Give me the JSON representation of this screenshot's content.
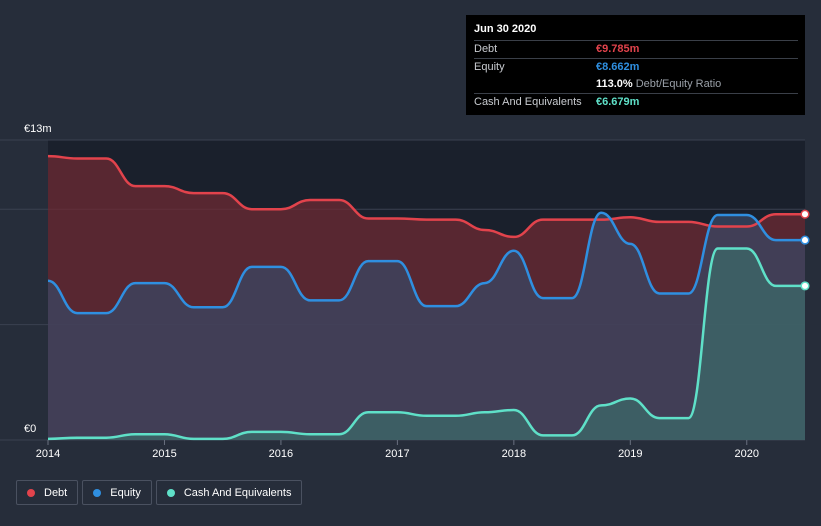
{
  "chart_data": {
    "type": "area",
    "title": "",
    "y_axis": {
      "min": 0,
      "max": 13,
      "unit": "€m",
      "top_label": "€13m",
      "bottom_label": "€0"
    },
    "x_axis": {
      "min": 2014.0,
      "max": 2020.5,
      "ticks": [
        {
          "value": 2014,
          "label": "2014"
        },
        {
          "value": 2015,
          "label": "2015"
        },
        {
          "value": 2016,
          "label": "2016"
        },
        {
          "value": 2017,
          "label": "2017"
        },
        {
          "value": 2018,
          "label": "2018"
        },
        {
          "value": 2019,
          "label": "2019"
        },
        {
          "value": 2020,
          "label": "2020"
        }
      ]
    },
    "series": [
      {
        "key": "debt",
        "name": "Debt",
        "color": "#e2434c",
        "fill": "#6e2a33",
        "points": [
          [
            2014.0,
            12.3
          ],
          [
            2014.25,
            12.2
          ],
          [
            2014.5,
            12.2
          ],
          [
            2014.75,
            11.0
          ],
          [
            2015.0,
            11.0
          ],
          [
            2015.25,
            10.7
          ],
          [
            2015.5,
            10.7
          ],
          [
            2015.75,
            10.0
          ],
          [
            2016.0,
            10.0
          ],
          [
            2016.25,
            10.4
          ],
          [
            2016.5,
            10.4
          ],
          [
            2016.75,
            9.6
          ],
          [
            2017.0,
            9.6
          ],
          [
            2017.25,
            9.55
          ],
          [
            2017.5,
            9.55
          ],
          [
            2017.75,
            9.1
          ],
          [
            2018.0,
            8.8
          ],
          [
            2018.25,
            9.55
          ],
          [
            2018.5,
            9.55
          ],
          [
            2018.75,
            9.55
          ],
          [
            2019.0,
            9.65
          ],
          [
            2019.25,
            9.45
          ],
          [
            2019.5,
            9.45
          ],
          [
            2019.75,
            9.25
          ],
          [
            2020.0,
            9.25
          ],
          [
            2020.25,
            9.785
          ],
          [
            2020.5,
            9.785
          ]
        ]
      },
      {
        "key": "equity",
        "name": "Equity",
        "color": "#2f8fe0",
        "fill": "#3a4763",
        "points": [
          [
            2014.0,
            6.9
          ],
          [
            2014.25,
            5.5
          ],
          [
            2014.5,
            5.5
          ],
          [
            2014.75,
            6.8
          ],
          [
            2015.0,
            6.8
          ],
          [
            2015.25,
            5.75
          ],
          [
            2015.5,
            5.75
          ],
          [
            2015.75,
            7.5
          ],
          [
            2016.0,
            7.5
          ],
          [
            2016.25,
            6.05
          ],
          [
            2016.5,
            6.05
          ],
          [
            2016.75,
            7.75
          ],
          [
            2017.0,
            7.75
          ],
          [
            2017.25,
            5.8
          ],
          [
            2017.5,
            5.8
          ],
          [
            2017.75,
            6.8
          ],
          [
            2018.0,
            8.2
          ],
          [
            2018.25,
            6.15
          ],
          [
            2018.5,
            6.15
          ],
          [
            2018.75,
            9.85
          ],
          [
            2019.0,
            8.5
          ],
          [
            2019.25,
            6.35
          ],
          [
            2019.5,
            6.35
          ],
          [
            2019.75,
            9.75
          ],
          [
            2020.0,
            9.75
          ],
          [
            2020.25,
            8.662
          ],
          [
            2020.5,
            8.662
          ]
        ]
      },
      {
        "key": "cash",
        "name": "Cash And Equivalents",
        "color": "#5fe0c8",
        "fill": "#3c6a6a",
        "points": [
          [
            2014.0,
            0.05
          ],
          [
            2014.25,
            0.1
          ],
          [
            2014.5,
            0.1
          ],
          [
            2014.75,
            0.25
          ],
          [
            2015.0,
            0.25
          ],
          [
            2015.25,
            0.05
          ],
          [
            2015.5,
            0.05
          ],
          [
            2015.75,
            0.35
          ],
          [
            2016.0,
            0.35
          ],
          [
            2016.25,
            0.25
          ],
          [
            2016.5,
            0.25
          ],
          [
            2016.75,
            1.2
          ],
          [
            2017.0,
            1.2
          ],
          [
            2017.25,
            1.05
          ],
          [
            2017.5,
            1.05
          ],
          [
            2017.75,
            1.2
          ],
          [
            2018.0,
            1.3
          ],
          [
            2018.25,
            0.2
          ],
          [
            2018.5,
            0.2
          ],
          [
            2018.75,
            1.5
          ],
          [
            2019.0,
            1.8
          ],
          [
            2019.25,
            0.95
          ],
          [
            2019.5,
            0.95
          ],
          [
            2019.75,
            8.3
          ],
          [
            2020.0,
            8.3
          ],
          [
            2020.25,
            6.679
          ],
          [
            2020.5,
            6.679
          ]
        ]
      }
    ],
    "tooltip": {
      "date": "Jun 30 2020",
      "debt_label": "Debt",
      "debt_value": "€9.785m",
      "equity_label": "Equity",
      "equity_value": "€8.662m",
      "ratio_value": "113.0%",
      "ratio_label": "Debt/Equity Ratio",
      "cash_label": "Cash And Equivalents",
      "cash_value": "€6.679m"
    }
  },
  "legend": {
    "items": [
      {
        "key": "debt",
        "label": "Debt",
        "color": "#e2434c"
      },
      {
        "key": "equity",
        "label": "Equity",
        "color": "#2f8fe0"
      },
      {
        "key": "cash",
        "label": "Cash And Equivalents",
        "color": "#5fe0c8"
      }
    ]
  },
  "colors": {
    "background": "#262d3a",
    "plot_background": "#1c2230",
    "gridline": "#3a4150"
  }
}
